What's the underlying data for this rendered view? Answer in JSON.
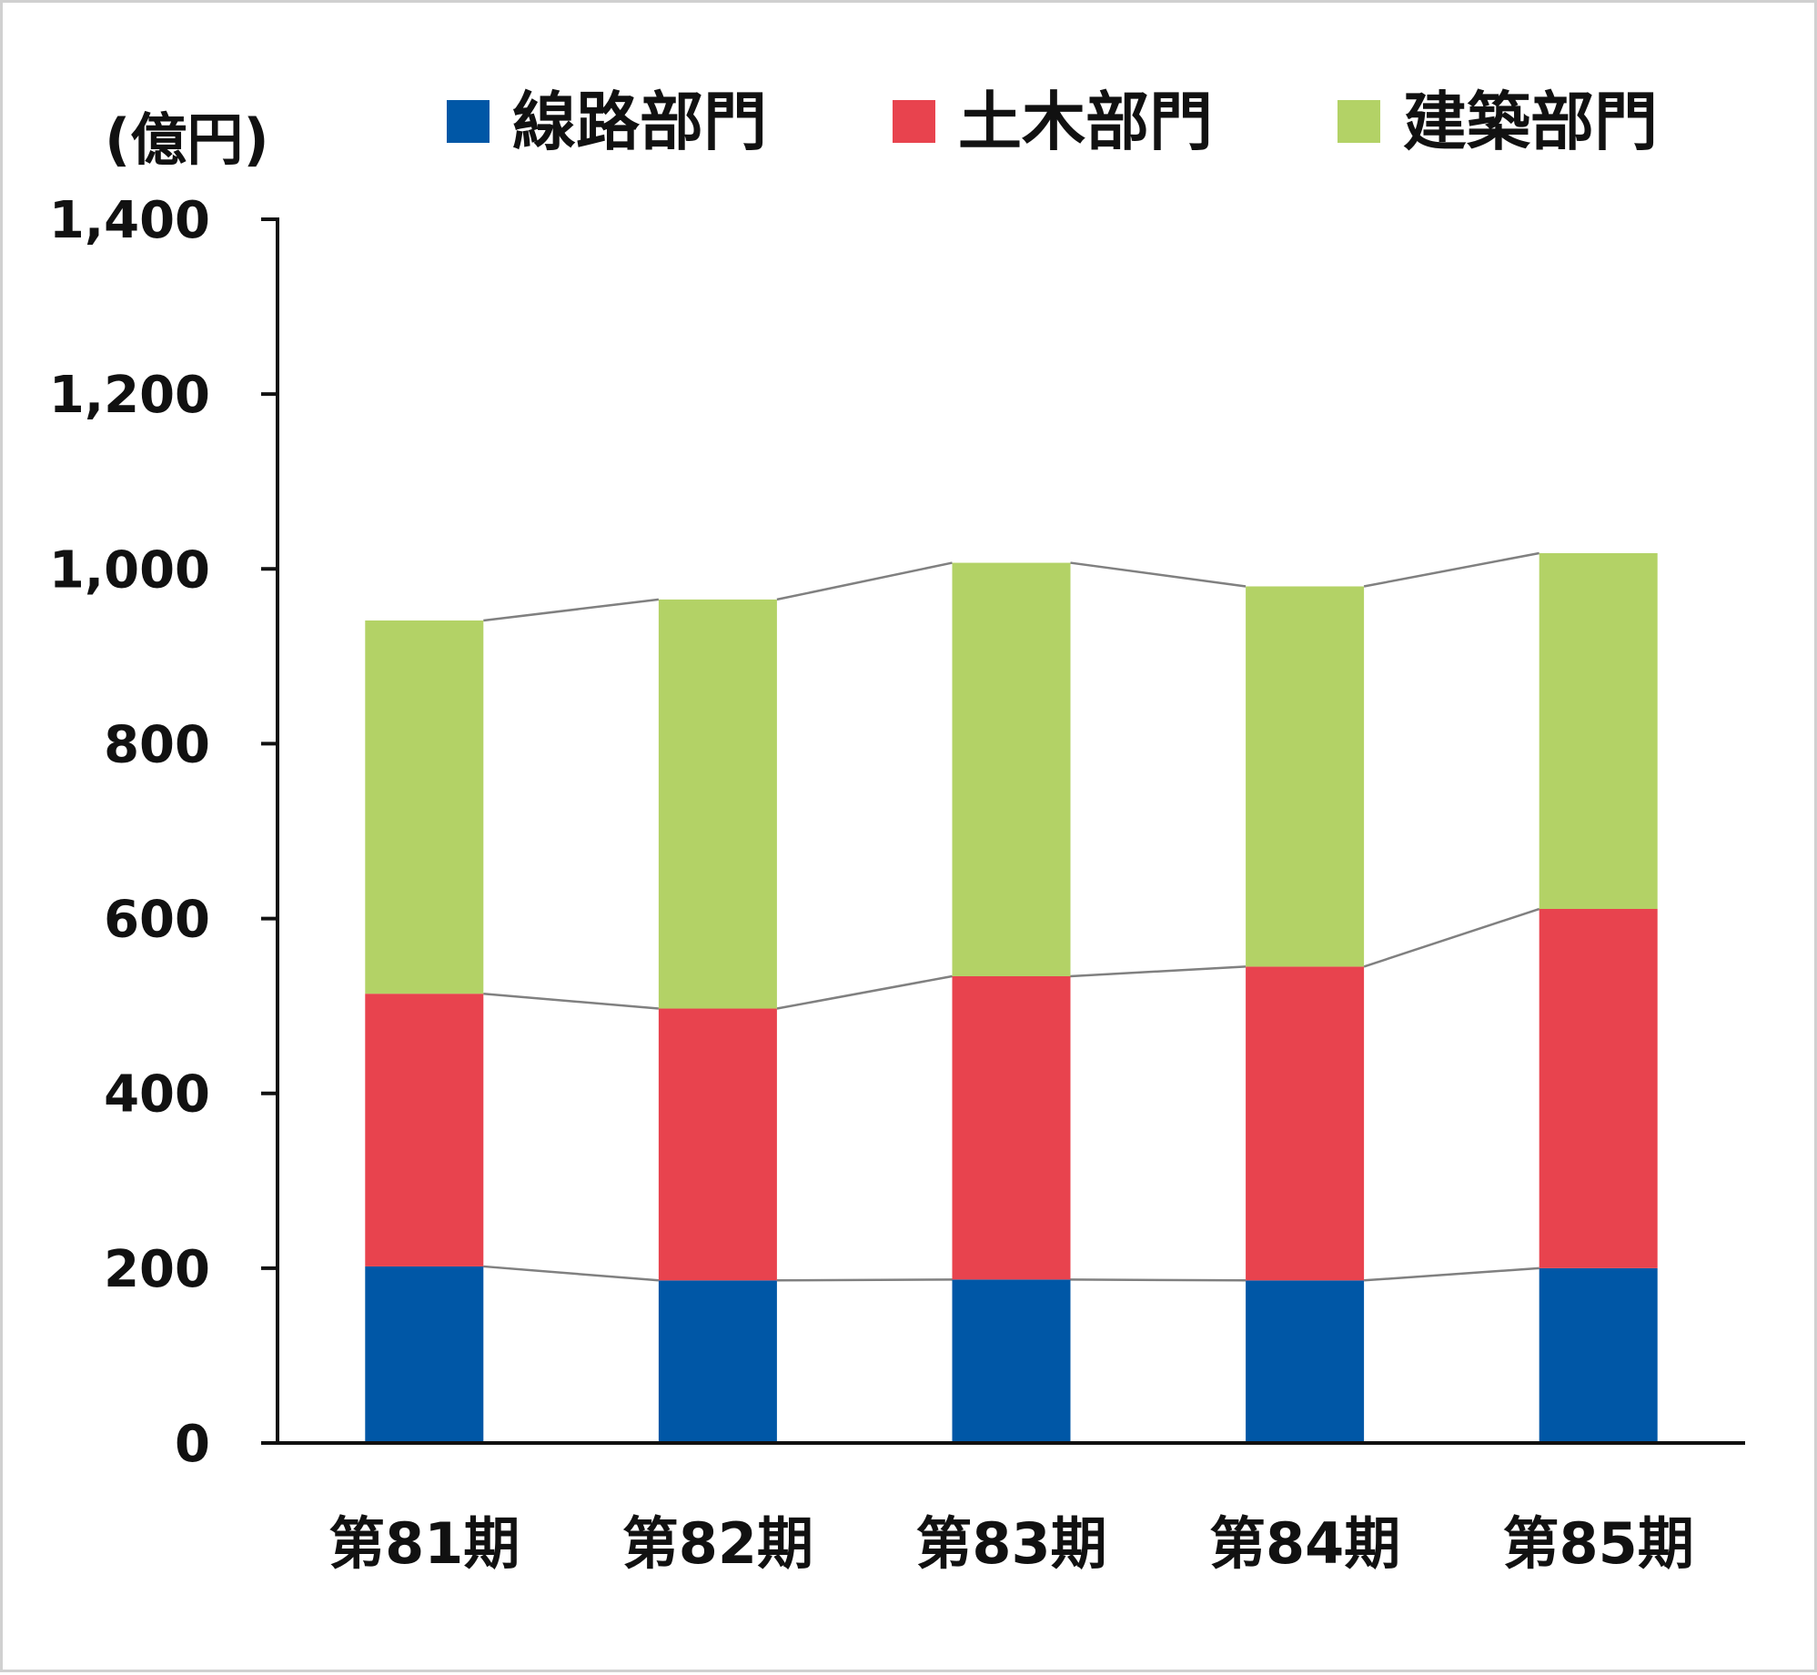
{
  "chart_data": {
    "type": "bar",
    "stacked": true,
    "unit": "(億円)",
    "categories": [
      "第81期",
      "第82期",
      "第83期",
      "第84期",
      "第85期"
    ],
    "series": [
      {
        "name": "線路部門",
        "color": "#0057a6",
        "values": [
          202,
          186,
          187,
          186,
          200
        ]
      },
      {
        "name": "土木部門",
        "color": "#e8434e",
        "values": [
          312,
          311,
          347,
          359,
          411
        ]
      },
      {
        "name": "建築部門",
        "color": "#b3d266",
        "values": [
          427,
          468,
          473,
          435,
          407
        ]
      }
    ],
    "ylim": [
      0,
      1400
    ],
    "yticks": [
      "0",
      "200",
      "400",
      "600",
      "800",
      "1,000",
      "1,200",
      "1,400"
    ],
    "ytick_values": [
      0,
      200,
      400,
      600,
      800,
      1000,
      1200,
      1400
    ],
    "connector_lines": true,
    "connector_color": "#808080",
    "axis_color": "#111111",
    "legend_position": "top",
    "grid": false
  }
}
